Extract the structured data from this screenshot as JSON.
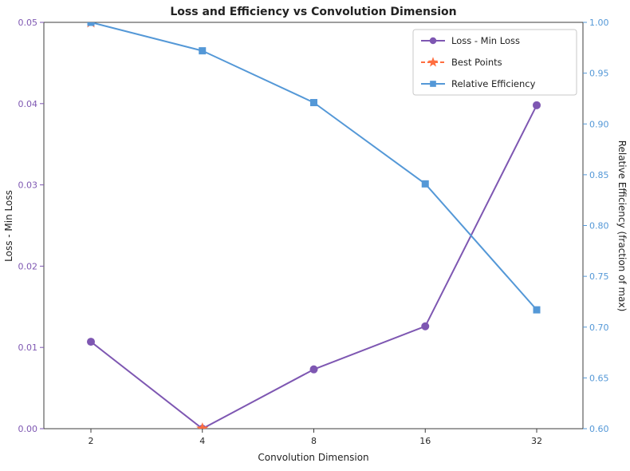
{
  "chart_data": {
    "type": "line",
    "title": "Loss and Efficiency vs Convolution Dimension",
    "xlabel": "Convolution Dimension",
    "ylabel_left": "Loss - Min Loss",
    "ylabel_right": "Relative Efficiency (fraction of max)",
    "x_categories": [
      "2",
      "4",
      "8",
      "16",
      "32"
    ],
    "x_scale_note": "log2-spaced categories, evenly spaced ticks",
    "grid": false,
    "left_axis": {
      "min": 0.0,
      "max": 0.05,
      "ticks": [
        "0.00",
        "0.01",
        "0.02",
        "0.03",
        "0.04",
        "0.05"
      ],
      "color": "#7e57b2"
    },
    "right_axis": {
      "min": 0.6,
      "max": 1.0,
      "ticks": [
        "0.60",
        "0.65",
        "0.70",
        "0.75",
        "0.80",
        "0.85",
        "0.90",
        "0.95",
        "1.00"
      ],
      "color": "#5498d7"
    },
    "series": [
      {
        "name": "Loss - Min Loss",
        "axis": "left",
        "color": "#7e57b2",
        "marker": "circle",
        "linestyle": "solid",
        "values": [
          0.0107,
          0.0,
          0.0073,
          0.0126,
          0.0398
        ]
      },
      {
        "name": "Best Points",
        "axis": "left",
        "color": "#ff6e40",
        "marker": "star",
        "linestyle": "dashed",
        "points": [
          {
            "x": "2",
            "y": 0.05
          },
          {
            "x": "4",
            "y": 0.0
          }
        ]
      },
      {
        "name": "Relative Efficiency",
        "axis": "right",
        "color": "#5498d7",
        "marker": "square",
        "linestyle": "solid",
        "values": [
          1.0,
          0.972,
          0.921,
          0.841,
          0.717
        ]
      }
    ],
    "legend": {
      "position": "upper right",
      "entries": [
        "Loss - Min Loss",
        "Best Points",
        "Relative Efficiency"
      ]
    }
  }
}
